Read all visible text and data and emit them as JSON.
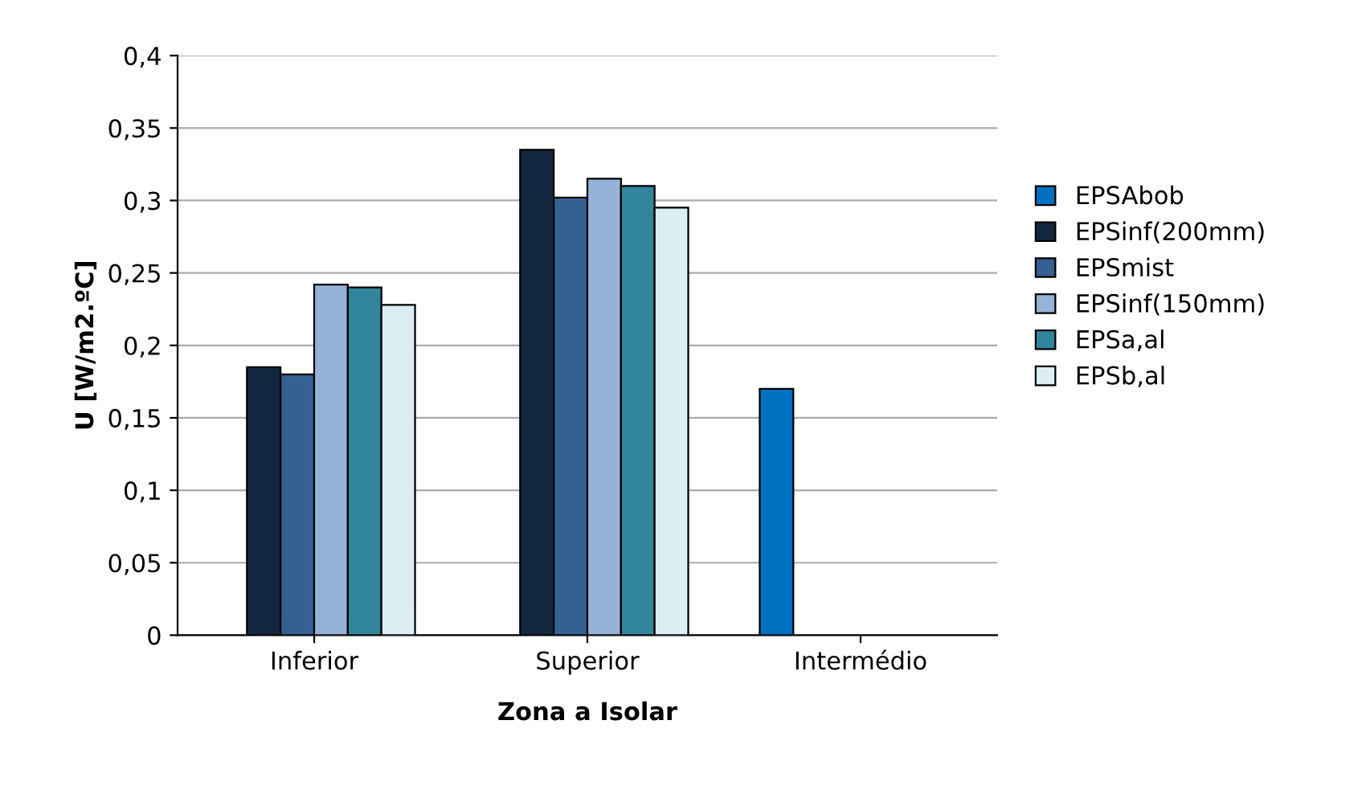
{
  "chart_data": {
    "type": "bar",
    "xlabel": "Zona a Isolar",
    "ylabel": "U [W/m2.ºC]",
    "categories": [
      "Inferior",
      "Superior",
      "Intermédio"
    ],
    "series": [
      {
        "name": "EPSAbob",
        "color": "#0070c0",
        "values": [
          null,
          null,
          0.17
        ]
      },
      {
        "name": "EPSinf(200mm)",
        "color": "#132840",
        "values": [
          0.185,
          0.335,
          null
        ]
      },
      {
        "name": "EPSmist",
        "color": "#376092",
        "values": [
          0.18,
          0.302,
          null
        ]
      },
      {
        "name": "EPSinf(150mm)",
        "color": "#95b3d7",
        "values": [
          0.242,
          0.315,
          null
        ]
      },
      {
        "name": "EPSa,al",
        "color": "#31859c",
        "values": [
          0.24,
          0.31,
          null
        ]
      },
      {
        "name": "EPSb,al",
        "color": "#dbeef3",
        "values": [
          0.228,
          0.295,
          null
        ]
      }
    ],
    "ylim": [
      0,
      0.4
    ],
    "yticks": [
      {
        "value": 0,
        "label": "0"
      },
      {
        "value": 0.05,
        "label": "0,05"
      },
      {
        "value": 0.1,
        "label": "0,1"
      },
      {
        "value": 0.15,
        "label": "0,15"
      },
      {
        "value": 0.2,
        "label": "0,2"
      },
      {
        "value": 0.25,
        "label": "0,25"
      },
      {
        "value": 0.3,
        "label": "0,3"
      },
      {
        "value": 0.35,
        "label": "0,35"
      },
      {
        "value": 0.4,
        "label": "0,4"
      }
    ],
    "grid": "y",
    "legend": "right"
  }
}
